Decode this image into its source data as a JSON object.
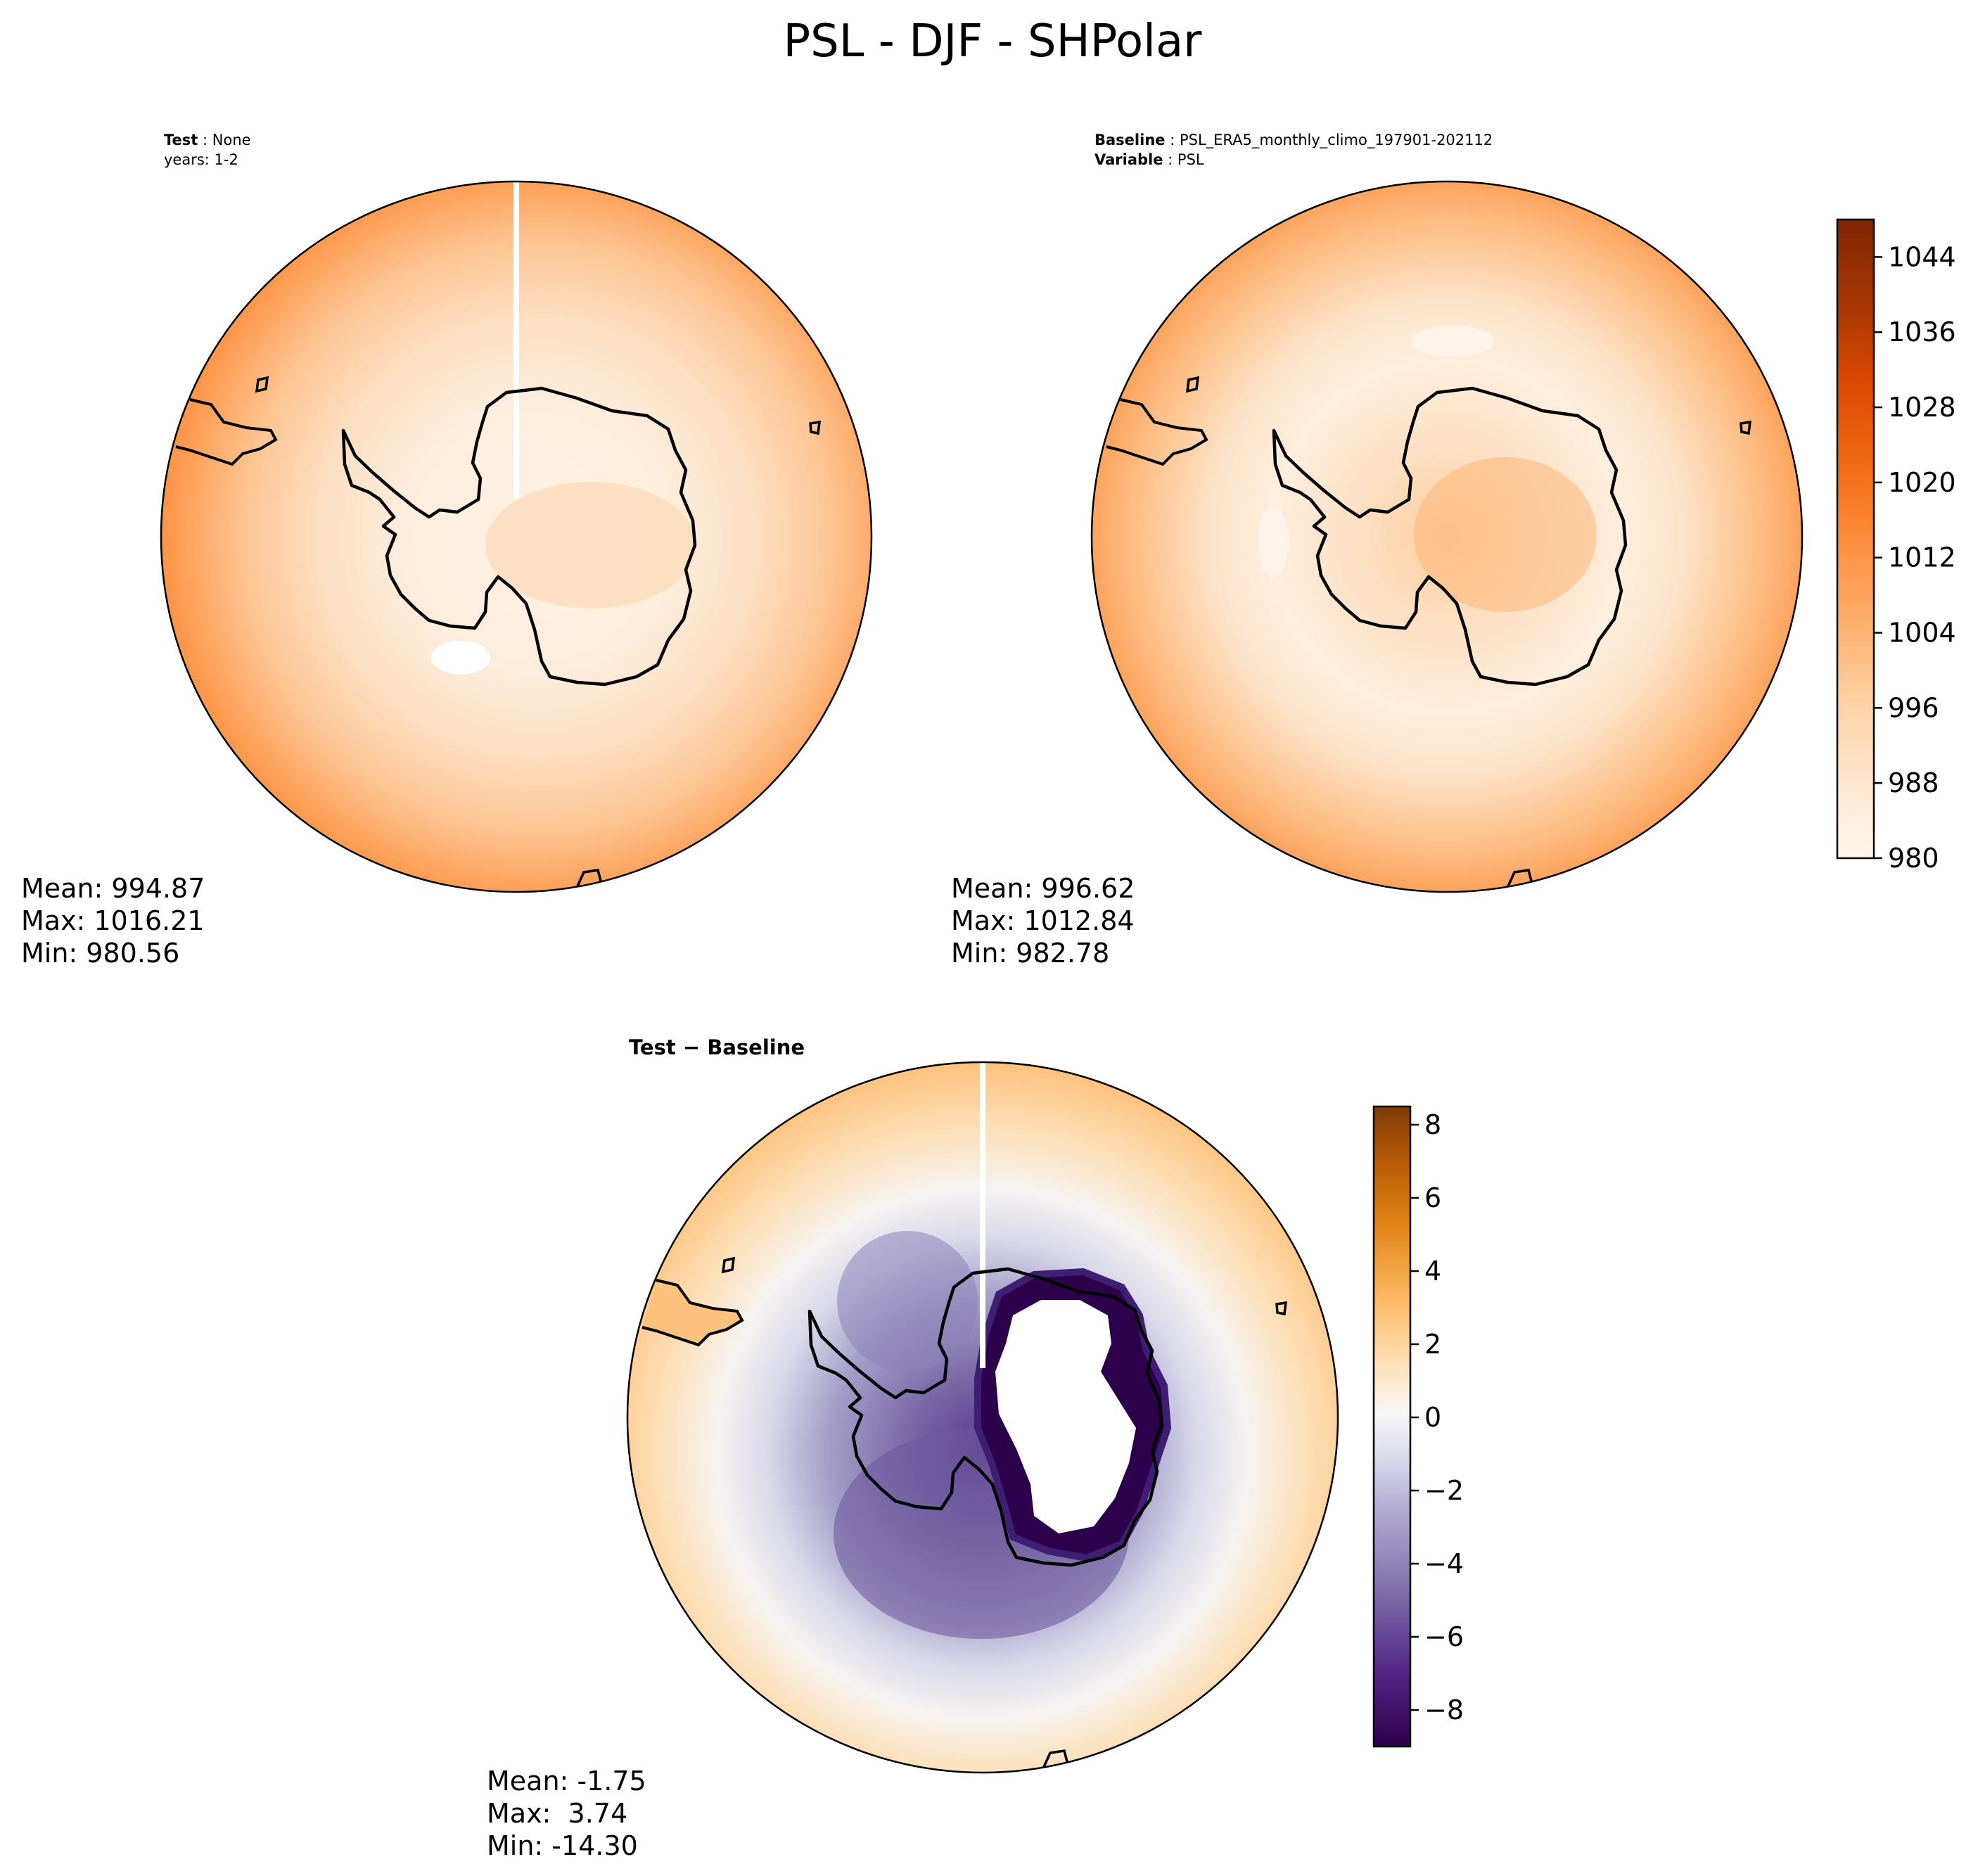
{
  "figure": {
    "title": "PSL - DJF - SHPolar"
  },
  "chart_data": [
    {
      "type": "heatmap",
      "projection": "south-polar-stereographic",
      "region": "Antarctica",
      "info": [
        {
          "key": "Test",
          "value": "None"
        },
        {
          "key": "",
          "value": "years: 1-2"
        }
      ],
      "stats": {
        "mean": "Mean: 994.87",
        "max": "Max: 1016.21",
        "min": "Min: 980.56"
      },
      "colormap": "Oranges",
      "data_range": [
        980.56,
        1016.21
      ],
      "shared_colorbar": "absolute"
    },
    {
      "type": "heatmap",
      "projection": "south-polar-stereographic",
      "region": "Antarctica",
      "info": [
        {
          "key": "Baseline",
          "value": "PSL_ERA5_monthly_climo_197901-202112"
        },
        {
          "key": "Variable",
          "value": "PSL"
        }
      ],
      "stats": {
        "mean": "Mean: 996.62",
        "max": "Max: 1012.84",
        "min": "Min: 982.78"
      },
      "colormap": "Oranges",
      "data_range": [
        982.78,
        1012.84
      ],
      "shared_colorbar": "absolute"
    },
    {
      "type": "heatmap",
      "projection": "south-polar-stereographic",
      "region": "Antarctica",
      "info": [
        {
          "key": "Test − Baseline",
          "value": ""
        }
      ],
      "stats": {
        "mean": "Mean: -1.75",
        "max": "Max:  3.74",
        "min": "Min: -14.30"
      },
      "colormap": "PuOr_r",
      "data_range": [
        -14.3,
        3.74
      ],
      "shared_colorbar": "difference"
    }
  ],
  "colorbars": {
    "absolute": {
      "range": [
        980,
        1048
      ],
      "ticks": [
        980,
        988,
        996,
        1004,
        1012,
        1020,
        1028,
        1036,
        1044
      ],
      "tick_labels": [
        "980",
        "988",
        "996",
        "1004",
        "1012",
        "1020",
        "1028",
        "1036",
        "1044"
      ],
      "colors": [
        "#fff5eb",
        "#fee6ce",
        "#fdd0a2",
        "#fdae6b",
        "#fd8d3c",
        "#f16913",
        "#d94801",
        "#a63603",
        "#7f2704"
      ]
    },
    "difference": {
      "range": [
        -9,
        8.5
      ],
      "ticks": [
        -8,
        -6,
        -4,
        -2,
        0,
        2,
        4,
        6,
        8
      ],
      "tick_labels": [
        "−8",
        "−6",
        "−4",
        "−2",
        "0",
        "2",
        "4",
        "6",
        "8"
      ],
      "colors": [
        "#2d004b",
        "#542788",
        "#8073ac",
        "#b2abd2",
        "#d8daeb",
        "#f7f7f7",
        "#fee0b6",
        "#fdb863",
        "#e08214",
        "#b35806",
        "#7f3b08"
      ]
    }
  }
}
